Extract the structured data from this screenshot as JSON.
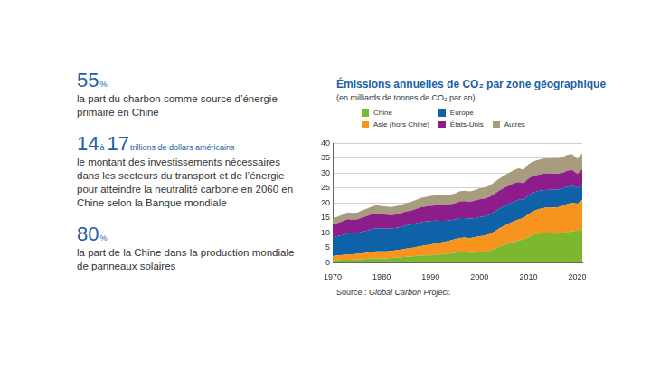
{
  "facts": [
    {
      "headline": [
        "55",
        "%"
      ],
      "text": "la part du charbon comme source d’énergie primaire en Chine"
    },
    {
      "headline": [
        "14",
        "à",
        "17",
        "trillions de dollars américains"
      ],
      "text": "le montant des investissements nécessaires dans les secteurs du transport et de l’énergie pour atteindre la neutralité carbone en 2060 en Chine selon la Banque mondiale"
    },
    {
      "headline": [
        "80",
        "%"
      ],
      "text": "la part de la Chine dans la production mondiale de panneaux solaires"
    }
  ],
  "chart_data": {
    "type": "area",
    "title": "Émissions annuelles de CO₂ par zone géographique",
    "subtitle": "(en milliards de tonnes de CO₂ par an)",
    "source": {
      "label": "Source :",
      "text": "Global Carbon Project."
    },
    "stacked": true,
    "grid": true,
    "x": [
      1970,
      1971,
      1972,
      1973,
      1974,
      1975,
      1976,
      1977,
      1978,
      1979,
      1980,
      1981,
      1982,
      1983,
      1984,
      1985,
      1986,
      1987,
      1988,
      1989,
      1990,
      1991,
      1992,
      1993,
      1994,
      1995,
      1996,
      1997,
      1998,
      1999,
      2000,
      2001,
      2002,
      2003,
      2004,
      2005,
      2006,
      2007,
      2008,
      2009,
      2010,
      2011,
      2012,
      2013,
      2014,
      2015,
      2016,
      2017,
      2018,
      2019,
      2020,
      2021
    ],
    "xlim": [
      1970,
      2021
    ],
    "xticks": [
      1970,
      1980,
      1990,
      2000,
      2010,
      2020
    ],
    "ylim": [
      0,
      40
    ],
    "yticks": [
      0,
      5,
      10,
      15,
      20,
      25,
      30,
      35,
      40
    ],
    "series": [
      {
        "name": "Chine",
        "color": "#7cb82f",
        "values": [
          0.8,
          0.9,
          0.95,
          1.0,
          1.0,
          1.1,
          1.15,
          1.25,
          1.4,
          1.45,
          1.45,
          1.45,
          1.55,
          1.65,
          1.8,
          1.95,
          2.05,
          2.2,
          2.35,
          2.4,
          2.45,
          2.6,
          2.7,
          2.9,
          3.05,
          3.3,
          3.4,
          3.4,
          3.3,
          3.35,
          3.45,
          3.55,
          3.85,
          4.5,
          5.25,
          5.9,
          6.5,
          7.0,
          7.4,
          7.8,
          8.5,
          9.4,
          9.7,
          9.9,
          10.0,
          9.8,
          9.7,
          9.9,
          10.2,
          10.5,
          10.7,
          11.4
        ]
      },
      {
        "name": "Asie (hors Chine)",
        "color": "#f7941d",
        "values": [
          1.4,
          1.5,
          1.6,
          1.75,
          1.8,
          1.85,
          1.95,
          2.05,
          2.2,
          2.3,
          2.3,
          2.35,
          2.4,
          2.5,
          2.6,
          2.75,
          2.85,
          3.0,
          3.2,
          3.4,
          3.6,
          3.8,
          4.0,
          4.15,
          4.4,
          4.6,
          4.85,
          5.0,
          4.9,
          5.2,
          5.4,
          5.5,
          5.7,
          5.9,
          6.2,
          6.4,
          6.6,
          6.9,
          7.1,
          7.2,
          7.7,
          7.9,
          8.2,
          8.4,
          8.6,
          8.7,
          8.9,
          9.1,
          9.5,
          9.6,
          9.1,
          9.6
        ]
      },
      {
        "name": "Europe",
        "color": "#0f62a8",
        "values": [
          6.3,
          6.5,
          6.7,
          7.0,
          7.0,
          7.0,
          7.3,
          7.4,
          7.6,
          7.8,
          7.7,
          7.6,
          7.5,
          7.5,
          7.6,
          7.8,
          7.9,
          8.0,
          8.0,
          8.0,
          7.9,
          7.7,
          7.3,
          7.0,
          6.7,
          6.6,
          6.7,
          6.5,
          6.5,
          6.4,
          6.4,
          6.5,
          6.5,
          6.6,
          6.6,
          6.6,
          6.7,
          6.6,
          6.6,
          6.1,
          6.3,
          6.2,
          6.1,
          6.0,
          5.8,
          5.9,
          5.9,
          5.9,
          5.8,
          5.6,
          5.2,
          5.4
        ]
      },
      {
        "name": "États-Unis",
        "color": "#8c1d8a",
        "values": [
          4.3,
          4.4,
          4.6,
          4.8,
          4.6,
          4.5,
          4.7,
          4.9,
          5.0,
          5.0,
          4.8,
          4.7,
          4.5,
          4.5,
          4.6,
          4.6,
          4.6,
          4.8,
          5.0,
          5.0,
          5.1,
          5.1,
          5.2,
          5.3,
          5.4,
          5.4,
          5.6,
          5.7,
          5.7,
          5.8,
          6.0,
          5.9,
          5.9,
          6.0,
          6.1,
          6.1,
          6.0,
          6.1,
          5.9,
          5.5,
          5.7,
          5.6,
          5.4,
          5.5,
          5.5,
          5.4,
          5.3,
          5.2,
          5.4,
          5.3,
          4.7,
          5.0
        ]
      },
      {
        "name": "Autres",
        "color": "#a99b7e",
        "values": [
          2.0,
          2.1,
          2.2,
          2.3,
          2.3,
          2.3,
          2.4,
          2.5,
          2.6,
          2.7,
          2.7,
          2.7,
          2.7,
          2.8,
          2.8,
          2.9,
          3.0,
          3.0,
          3.1,
          3.2,
          3.3,
          3.3,
          3.3,
          3.2,
          3.2,
          3.3,
          3.4,
          3.5,
          3.5,
          3.5,
          3.6,
          3.7,
          3.8,
          3.9,
          4.0,
          4.2,
          4.3,
          4.4,
          4.6,
          4.6,
          4.8,
          4.9,
          5.0,
          5.1,
          5.1,
          5.2,
          5.2,
          5.3,
          5.3,
          5.3,
          5.0,
          5.2
        ]
      }
    ]
  }
}
